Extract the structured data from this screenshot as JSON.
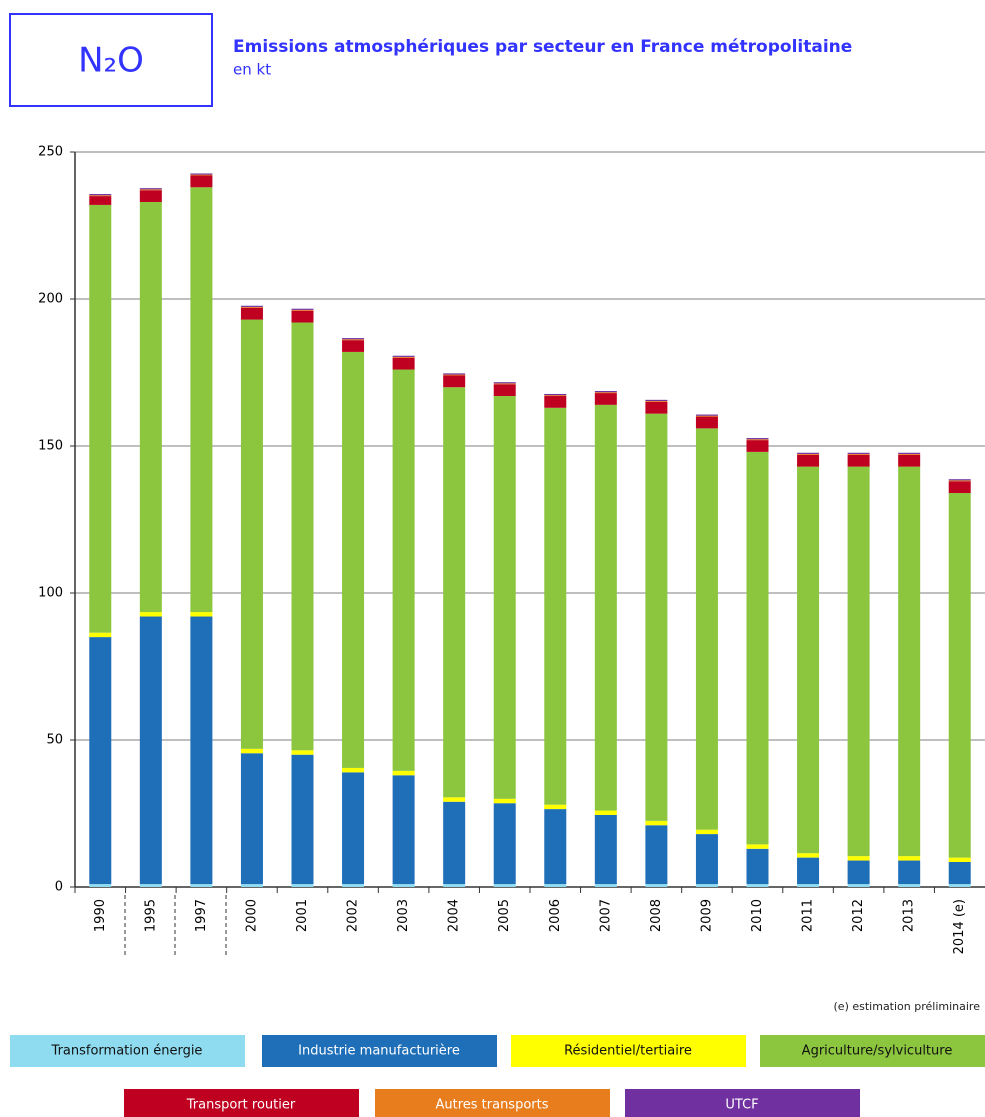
{
  "chart_data": {
    "type": "stacked_bar",
    "box_label": "N₂O",
    "title": "Emissions atmosphériques par secteur en France métropolitaine",
    "subtitle": "en kt",
    "note": "(e) estimation préliminaire",
    "categories": [
      "1990",
      "1995",
      "1997",
      "2000",
      "2001",
      "2002",
      "2003",
      "2004",
      "2005",
      "2006",
      "2007",
      "2008",
      "2009",
      "2010",
      "2011",
      "2012",
      "2013",
      "2014 (e)"
    ],
    "series": [
      {
        "name": "Transformation énergie",
        "color": "#8fdcf0",
        "values": [
          1,
          1,
          1,
          1,
          1,
          1,
          1,
          1,
          1,
          1,
          1,
          1,
          1,
          1,
          1,
          1,
          1,
          1
        ]
      },
      {
        "name": "Industrie manufacturière",
        "color": "#1f6fb8",
        "values": [
          84,
          91,
          91,
          44.5,
          44,
          38,
          37,
          28,
          27.5,
          25.5,
          23.5,
          20,
          17,
          12,
          9,
          8,
          8,
          7.5
        ]
      },
      {
        "name": "Résidentiel/tertiaire",
        "color": "#ffff00",
        "values": [
          1.5,
          1.5,
          1.5,
          1.5,
          1.5,
          1.5,
          1.5,
          1.5,
          1.5,
          1.5,
          1.5,
          1.5,
          1.5,
          1.5,
          1.5,
          1.5,
          1.5,
          1.5
        ]
      },
      {
        "name": "Agriculture/sylviculture",
        "color": "#8cc63f",
        "values": [
          145.5,
          139.5,
          144.5,
          146,
          145.5,
          141.5,
          136.5,
          139.5,
          137,
          135,
          138,
          138.5,
          136.5,
          133.5,
          131.5,
          132.5,
          132.5,
          124
        ]
      },
      {
        "name": "Transport routier",
        "color": "#c00020",
        "values": [
          3,
          4,
          4,
          4,
          4,
          4,
          4,
          4,
          4,
          4,
          4,
          4,
          4,
          4,
          4,
          4,
          4,
          4
        ]
      },
      {
        "name": "Autres transports",
        "color": "#e87d1e",
        "values": [
          0.3,
          0.3,
          0.3,
          0.3,
          0.3,
          0.3,
          0.3,
          0.3,
          0.3,
          0.3,
          0.3,
          0.3,
          0.3,
          0.3,
          0.3,
          0.3,
          0.3,
          0.3
        ]
      },
      {
        "name": "UTCF",
        "color": "#7030a0",
        "values": [
          0.4,
          0.4,
          0.4,
          0.4,
          0.4,
          0.4,
          0.4,
          0.4,
          0.4,
          0.4,
          0.4,
          0.4,
          0.4,
          0.4,
          0.4,
          0.4,
          0.4,
          0.4
        ]
      }
    ],
    "ylim": [
      0,
      250
    ],
    "yticks": [
      0,
      50,
      100,
      150,
      200,
      250
    ],
    "grid": true
  }
}
